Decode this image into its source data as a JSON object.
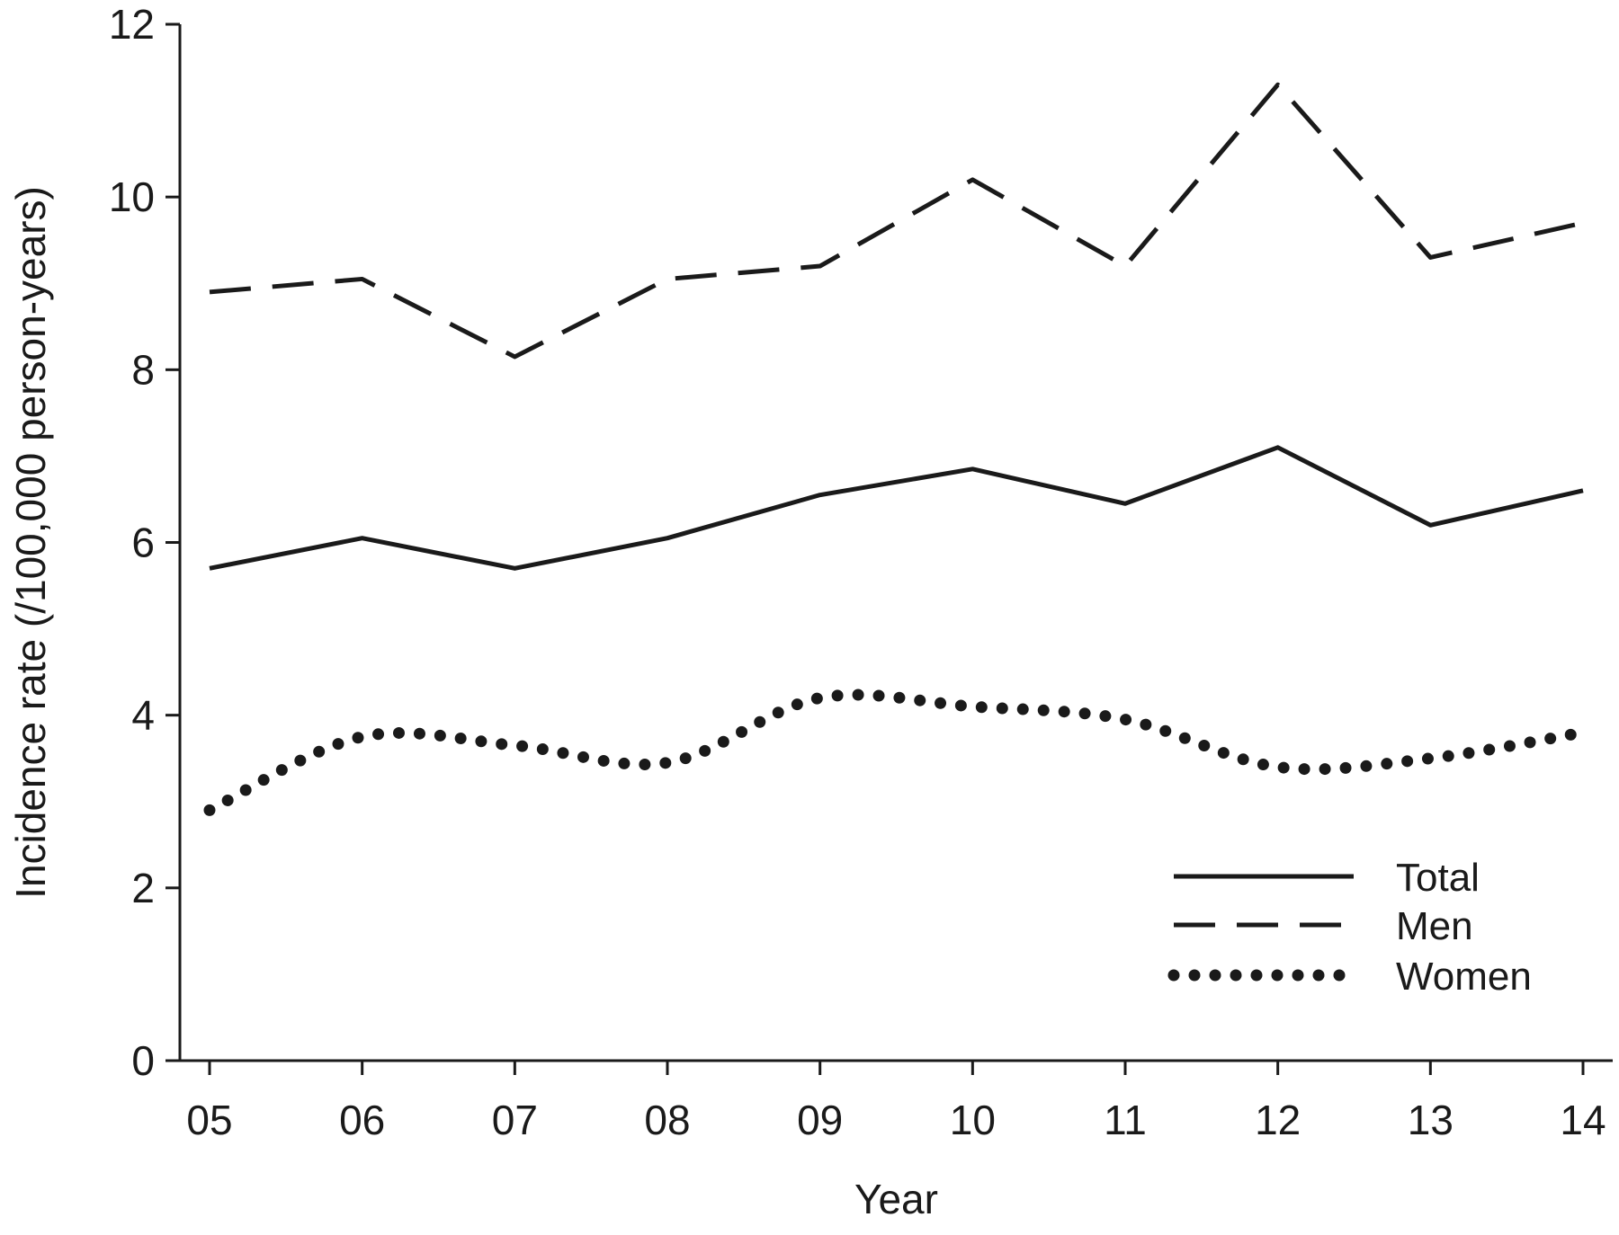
{
  "chart_data": {
    "type": "line",
    "title": "",
    "xlabel": "Year",
    "ylabel": "Incidence rate (/100,000 person-years)",
    "categories": [
      "05",
      "06",
      "07",
      "08",
      "09",
      "10",
      "11",
      "12",
      "13",
      "14"
    ],
    "ylim": [
      0,
      12
    ],
    "yticks": [
      0,
      2,
      4,
      6,
      8,
      10,
      12
    ],
    "grid": false,
    "legend_position": "bottom-right",
    "series": [
      {
        "name": "Total",
        "style": "solid",
        "values": [
          5.7,
          6.05,
          5.7,
          6.05,
          6.55,
          6.85,
          6.45,
          7.1,
          6.2,
          6.6
        ]
      },
      {
        "name": "Men",
        "style": "dashed",
        "values": [
          8.9,
          9.05,
          8.15,
          9.05,
          9.2,
          10.2,
          9.2,
          11.3,
          9.3,
          9.7
        ]
      },
      {
        "name": "Women",
        "style": "dotted",
        "values": [
          2.9,
          3.75,
          3.65,
          3.45,
          4.2,
          4.1,
          3.95,
          3.4,
          3.5,
          3.8
        ]
      }
    ],
    "colors": {
      "line": "#1a1a1a",
      "axis": "#1a1a1a",
      "background": "#ffffff"
    }
  }
}
